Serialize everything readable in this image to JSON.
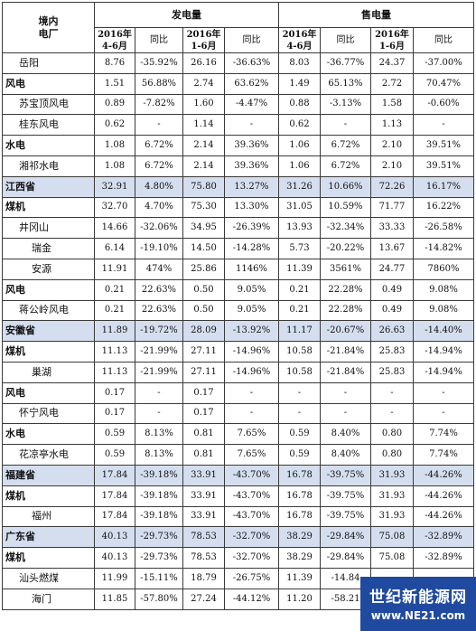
{
  "headers": {
    "plant": "境内\n电厂",
    "gen_group": "发电量",
    "sale_group": "售电量",
    "q2": "2016年\n4-6月",
    "yoy": "同比",
    "h1": "2016年\n1-6月"
  },
  "rows": [
    {
      "name": "岳阳",
      "style": "ind1",
      "v": [
        "8.76",
        "-35.92%",
        "26.16",
        "-36.63%",
        "8.03",
        "-36.77%",
        "24.37",
        "-37.00%"
      ]
    },
    {
      "name": "风电",
      "style": "bold",
      "v": [
        "1.51",
        "56.88%",
        "2.74",
        "63.62%",
        "1.49",
        "65.13%",
        "2.72",
        "70.47%"
      ]
    },
    {
      "name": "苏宝顶风电",
      "style": "ind1",
      "v": [
        "0.89",
        "-7.82%",
        "1.60",
        "-4.47%",
        "0.88",
        "-3.13%",
        "1.58",
        "-0.60%"
      ]
    },
    {
      "name": "桂东风电",
      "style": "ind1",
      "v": [
        "0.62",
        "-",
        "1.14",
        "-",
        "0.62",
        "-",
        "1.13",
        "-"
      ]
    },
    {
      "name": "水电",
      "style": "bold",
      "v": [
        "1.08",
        "6.72%",
        "2.14",
        "39.36%",
        "1.06",
        "6.72%",
        "2.10",
        "39.51%"
      ]
    },
    {
      "name": "湘祁水电",
      "style": "ind1",
      "v": [
        "1.08",
        "6.72%",
        "2.14",
        "39.36%",
        "1.06",
        "6.72%",
        "2.10",
        "39.51%"
      ]
    },
    {
      "name": "江西省",
      "style": "prov",
      "v": [
        "32.91",
        "4.80%",
        "75.80",
        "13.27%",
        "31.26",
        "10.66%",
        "72.26",
        "16.17%"
      ]
    },
    {
      "name": "煤机",
      "style": "bold",
      "v": [
        "32.70",
        "4.70%",
        "75.30",
        "13.30%",
        "31.05",
        "10.59%",
        "71.77",
        "16.22%"
      ]
    },
    {
      "name": "井冈山",
      "style": "ind1",
      "v": [
        "14.66",
        "-32.06%",
        "34.95",
        "-26.39%",
        "13.93",
        "-32.34%",
        "33.33",
        "-26.58%"
      ]
    },
    {
      "name": "瑞金",
      "style": "ind2",
      "v": [
        "6.14",
        "-19.10%",
        "14.50",
        "-14.28%",
        "5.73",
        "-20.22%",
        "13.67",
        "-14.82%"
      ]
    },
    {
      "name": "安源",
      "style": "ind2",
      "v": [
        "11.91",
        "474%",
        "25.86",
        "1146%",
        "11.39",
        "3561%",
        "24.77",
        "7860%"
      ]
    },
    {
      "name": "风电",
      "style": "bold",
      "v": [
        "0.21",
        "22.63%",
        "0.50",
        "9.05%",
        "0.21",
        "22.28%",
        "0.49",
        "9.08%"
      ]
    },
    {
      "name": "蒋公岭风电",
      "style": "ind1",
      "v": [
        "0.21",
        "22.63%",
        "0.50",
        "9.05%",
        "0.21",
        "22.28%",
        "0.49",
        "9.08%"
      ]
    },
    {
      "name": "安徽省",
      "style": "prov",
      "v": [
        "11.89",
        "-19.72%",
        "28.09",
        "-13.92%",
        "11.17",
        "-20.67%",
        "26.63",
        "-14.40%"
      ]
    },
    {
      "name": "煤机",
      "style": "bold",
      "v": [
        "11.13",
        "-21.99%",
        "27.11",
        "-14.96%",
        "10.58",
        "-21.84%",
        "25.83",
        "-14.94%"
      ]
    },
    {
      "name": "巢湖",
      "style": "ind2",
      "v": [
        "11.13",
        "-21.99%",
        "27.11",
        "-14.96%",
        "10.58",
        "-21.84%",
        "25.83",
        "-14.94%"
      ]
    },
    {
      "name": "风电",
      "style": "bold",
      "v": [
        "0.17",
        "-",
        "0.17",
        "-",
        "-",
        "-",
        "-",
        "-"
      ]
    },
    {
      "name": "怀宁风电",
      "style": "ind1",
      "v": [
        "0.17",
        "-",
        "0.17",
        "-",
        "-",
        "-",
        "-",
        "-"
      ]
    },
    {
      "name": "水电",
      "style": "bold",
      "v": [
        "0.59",
        "8.13%",
        "0.81",
        "7.65%",
        "0.59",
        "8.40%",
        "0.80",
        "7.74%"
      ]
    },
    {
      "name": "花凉亭水电",
      "style": "ind1",
      "v": [
        "0.59",
        "8.13%",
        "0.81",
        "7.65%",
        "0.59",
        "8.40%",
        "0.80",
        "7.74%"
      ]
    },
    {
      "name": "福建省",
      "style": "prov",
      "v": [
        "17.84",
        "-39.18%",
        "33.91",
        "-43.70%",
        "16.78",
        "-39.75%",
        "31.93",
        "-44.26%"
      ]
    },
    {
      "name": "煤机",
      "style": "bold",
      "v": [
        "17.84",
        "-39.18%",
        "33.91",
        "-43.70%",
        "16.78",
        "-39.75%",
        "31.93",
        "-44.26%"
      ]
    },
    {
      "name": "福州",
      "style": "ind2",
      "v": [
        "17.84",
        "-39.18%",
        "33.91",
        "-43.70%",
        "16.78",
        "-39.75%",
        "31.93",
        "-44.26%"
      ]
    },
    {
      "name": "广东省",
      "style": "prov",
      "v": [
        "40.13",
        "-29.73%",
        "78.53",
        "-32.70%",
        "38.29",
        "-29.84%",
        "75.08",
        "-32.89%"
      ]
    },
    {
      "name": "煤机",
      "style": "bold",
      "v": [
        "40.13",
        "-29.73%",
        "78.53",
        "-32.70%",
        "38.29",
        "-29.84%",
        "75.08",
        "-32.89%"
      ]
    },
    {
      "name": "汕头燃煤",
      "style": "ind1",
      "v": [
        "11.99",
        "-15.11%",
        "18.79",
        "-26.75%",
        "11.39",
        "-14.84",
        "",
        ""
      ]
    },
    {
      "name": "海门",
      "style": "ind2",
      "v": [
        "11.85",
        "-57.80%",
        "27.24",
        "-44.12%",
        "11.20",
        "-58.21",
        "",
        ""
      ]
    }
  ],
  "watermark": {
    "cn": "世纪新能源网",
    "url": "www.NE21.com"
  }
}
